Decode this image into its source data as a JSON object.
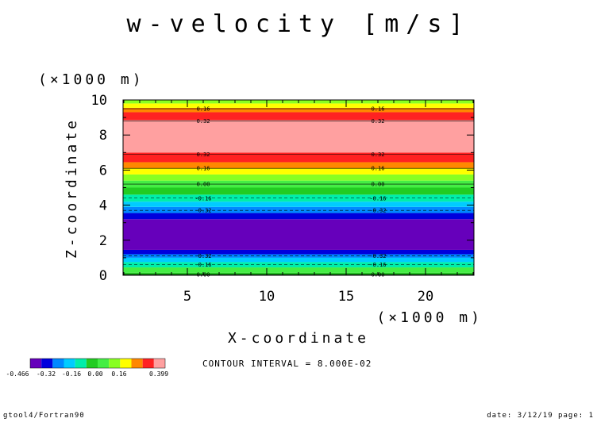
{
  "chart_data": {
    "type": "heatmap",
    "title": "w-velocity [m/s]",
    "xlabel": "X-coordinate",
    "ylabel": "Z-coordinate",
    "x_unit": "(×1000 m)",
    "y_unit": "(×1000 m)",
    "xlim": [
      0.95,
      23.05
    ],
    "ylim": [
      0,
      10
    ],
    "x_ticks": [
      "5",
      "10",
      "15",
      "20"
    ],
    "x_tick_values": [
      5,
      10,
      15,
      20
    ],
    "y_ticks": [
      "0",
      "2",
      "4",
      "6",
      "8",
      "10"
    ],
    "y_tick_values": [
      0,
      2,
      4,
      6,
      8,
      10
    ],
    "bands": [
      {
        "z0": 0.0,
        "z1": 0.15,
        "color": "#22cc22"
      },
      {
        "z0": 0.15,
        "z1": 0.45,
        "color": "#44ee44"
      },
      {
        "z0": 0.45,
        "z1": 0.75,
        "color": "#00eeaa"
      },
      {
        "z0": 0.75,
        "z1": 1.0,
        "color": "#00ccff"
      },
      {
        "z0": 1.0,
        "z1": 1.2,
        "color": "#0088ff"
      },
      {
        "z0": 1.2,
        "z1": 1.45,
        "color": "#0000dd"
      },
      {
        "z0": 1.45,
        "z1": 3.2,
        "color": "#6600bb"
      },
      {
        "z0": 3.2,
        "z1": 3.55,
        "color": "#0000dd"
      },
      {
        "z0": 3.55,
        "z1": 3.9,
        "color": "#0088ff"
      },
      {
        "z0": 3.9,
        "z1": 4.2,
        "color": "#00ccff"
      },
      {
        "z0": 4.2,
        "z1": 4.6,
        "color": "#00eeaa"
      },
      {
        "z0": 4.6,
        "z1": 5.0,
        "color": "#22cc22"
      },
      {
        "z0": 5.0,
        "z1": 5.4,
        "color": "#44ee44"
      },
      {
        "z0": 5.4,
        "z1": 5.75,
        "color": "#88ff22"
      },
      {
        "z0": 5.75,
        "z1": 6.1,
        "color": "#ffff00"
      },
      {
        "z0": 6.1,
        "z1": 6.45,
        "color": "#ff8800"
      },
      {
        "z0": 6.45,
        "z1": 7.0,
        "color": "#ff2222"
      },
      {
        "z0": 7.0,
        "z1": 8.85,
        "color": "#ffa0a0"
      },
      {
        "z0": 8.85,
        "z1": 9.3,
        "color": "#ff2222"
      },
      {
        "z0": 9.3,
        "z1": 9.55,
        "color": "#ff8800"
      },
      {
        "z0": 9.55,
        "z1": 9.8,
        "color": "#ffff00"
      },
      {
        "z0": 9.8,
        "z1": 10.0,
        "color": "#88ff22"
      }
    ],
    "contours": [
      {
        "z": 0.05,
        "label": "0.00",
        "dashed": false
      },
      {
        "z": 0.6,
        "label": "-0.16",
        "dashed": true
      },
      {
        "z": 1.1,
        "label": "-0.32",
        "dashed": true
      },
      {
        "z": 3.7,
        "label": "-0.32",
        "dashed": true
      },
      {
        "z": 4.4,
        "label": "-0.16",
        "dashed": true
      },
      {
        "z": 5.2,
        "label": "0.00",
        "dashed": false
      },
      {
        "z": 6.1,
        "label": "0.16",
        "dashed": false
      },
      {
        "z": 6.9,
        "label": "0.32",
        "dashed": false
      },
      {
        "z": 8.8,
        "label": "0.32",
        "dashed": false
      },
      {
        "z": 9.5,
        "label": "0.16",
        "dashed": false
      }
    ],
    "contour_label_x": [
      6,
      17
    ],
    "colorbar": {
      "colors": [
        "#6600bb",
        "#0000dd",
        "#0088ff",
        "#00ccff",
        "#00eeaa",
        "#22cc22",
        "#44ee44",
        "#88ff22",
        "#ffff00",
        "#ff8800",
        "#ff2222",
        "#ffa0a0"
      ],
      "labels": [
        "-0.466",
        "-0.32",
        "-0.16",
        "0.00",
        "0.16",
        "0.399"
      ]
    }
  },
  "contour_interval_text": "CONTOUR INTERVAL = 8.000E-02",
  "footer": {
    "left": "gtool4/Fortran90",
    "right": "date: 3/12/19 page: 1"
  }
}
